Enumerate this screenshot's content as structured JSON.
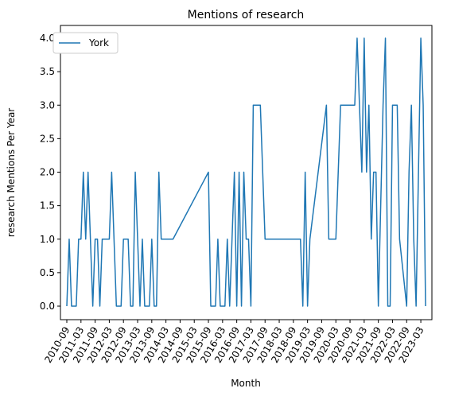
{
  "chart_data": {
    "type": "line",
    "title": "Mentions of research",
    "xlabel": "Month",
    "ylabel": "research Mentions Per Year",
    "ylim": [
      0,
      4
    ],
    "y_ticks": [
      "0.0",
      "0.5",
      "1.0",
      "1.5",
      "2.0",
      "2.5",
      "3.0",
      "3.5",
      "4.0"
    ],
    "x_ticks": [
      "2010-09",
      "2011-03",
      "2011-09",
      "2012-03",
      "2012-09",
      "2013-03",
      "2013-09",
      "2014-03",
      "2014-09",
      "2015-03",
      "2015-09",
      "2016-03",
      "2016-09",
      "2017-03",
      "2017-09",
      "2018-03",
      "2018-09",
      "2019-03",
      "2019-09",
      "2020-03",
      "2020-09",
      "2021-03",
      "2021-09",
      "2022-03",
      "2022-09",
      "2023-03"
    ],
    "legend": "upper-left",
    "colors": {
      "series": "#1f77b4"
    },
    "series": [
      {
        "name": "York",
        "points": [
          [
            "2010-09",
            0
          ],
          [
            "2010-10",
            1
          ],
          [
            "2010-11",
            0
          ],
          [
            "2010-12",
            0
          ],
          [
            "2011-01",
            0
          ],
          [
            "2011-02",
            1
          ],
          [
            "2011-03",
            1
          ],
          [
            "2011-04",
            2
          ],
          [
            "2011-05",
            1
          ],
          [
            "2011-06",
            2
          ],
          [
            "2011-07",
            1
          ],
          [
            "2011-08",
            0
          ],
          [
            "2011-09",
            1
          ],
          [
            "2011-10",
            1
          ],
          [
            "2011-11",
            0
          ],
          [
            "2011-12",
            1
          ],
          [
            "2012-01",
            1
          ],
          [
            "2012-02",
            1
          ],
          [
            "2012-03",
            1
          ],
          [
            "2012-04",
            2
          ],
          [
            "2012-05",
            1
          ],
          [
            "2012-06",
            0
          ],
          [
            "2012-07",
            0
          ],
          [
            "2012-08",
            0
          ],
          [
            "2012-09",
            1
          ],
          [
            "2012-10",
            1
          ],
          [
            "2012-11",
            1
          ],
          [
            "2012-12",
            0
          ],
          [
            "2013-01",
            0
          ],
          [
            "2013-02",
            2
          ],
          [
            "2013-03",
            1
          ],
          [
            "2013-04",
            0
          ],
          [
            "2013-05",
            1
          ],
          [
            "2013-06",
            0
          ],
          [
            "2013-07",
            0
          ],
          [
            "2013-08",
            0
          ],
          [
            "2013-09",
            1
          ],
          [
            "2013-10",
            0
          ],
          [
            "2013-11",
            0
          ],
          [
            "2013-12",
            2
          ],
          [
            "2014-01",
            1
          ],
          [
            "2014-06",
            1
          ],
          [
            "2015-09",
            2
          ],
          [
            "2015-10",
            0
          ],
          [
            "2015-11",
            0
          ],
          [
            "2015-12",
            0
          ],
          [
            "2016-01",
            1
          ],
          [
            "2016-02",
            0
          ],
          [
            "2016-03",
            0
          ],
          [
            "2016-04",
            0
          ],
          [
            "2016-05",
            1
          ],
          [
            "2016-06",
            0
          ],
          [
            "2016-07",
            1
          ],
          [
            "2016-08",
            2
          ],
          [
            "2016-09",
            0
          ],
          [
            "2016-10",
            2
          ],
          [
            "2016-11",
            0
          ],
          [
            "2016-12",
            2
          ],
          [
            "2017-01",
            1
          ],
          [
            "2017-02",
            1
          ],
          [
            "2017-03",
            0
          ],
          [
            "2017-04",
            3
          ],
          [
            "2017-05",
            3
          ],
          [
            "2017-06",
            3
          ],
          [
            "2017-07",
            3
          ],
          [
            "2017-09",
            1
          ],
          [
            "2018-12",
            1
          ],
          [
            "2019-01",
            0
          ],
          [
            "2019-02",
            2
          ],
          [
            "2019-03",
            0
          ],
          [
            "2019-04",
            1
          ],
          [
            "2019-11",
            3
          ],
          [
            "2019-12",
            1
          ],
          [
            "2020-01",
            1
          ],
          [
            "2020-02",
            1
          ],
          [
            "2020-03",
            1
          ],
          [
            "2020-05",
            3
          ],
          [
            "2020-11",
            3
          ],
          [
            "2020-12",
            4
          ],
          [
            "2021-01",
            3
          ],
          [
            "2021-02",
            2
          ],
          [
            "2021-03",
            4
          ],
          [
            "2021-04",
            2
          ],
          [
            "2021-05",
            3
          ],
          [
            "2021-06",
            1
          ],
          [
            "2021-07",
            2
          ],
          [
            "2021-08",
            2
          ],
          [
            "2021-09",
            0
          ],
          [
            "2021-11",
            3
          ],
          [
            "2021-12",
            4
          ],
          [
            "2022-01",
            0
          ],
          [
            "2022-02",
            0
          ],
          [
            "2022-03",
            3
          ],
          [
            "2022-04",
            3
          ],
          [
            "2022-05",
            3
          ],
          [
            "2022-06",
            1
          ],
          [
            "2022-09",
            0
          ],
          [
            "2022-10",
            2
          ],
          [
            "2022-11",
            3
          ],
          [
            "2022-12",
            1
          ],
          [
            "2023-01",
            0
          ],
          [
            "2023-02",
            2
          ],
          [
            "2023-03",
            4
          ],
          [
            "2023-04",
            3
          ],
          [
            "2023-05",
            0
          ]
        ]
      }
    ]
  }
}
